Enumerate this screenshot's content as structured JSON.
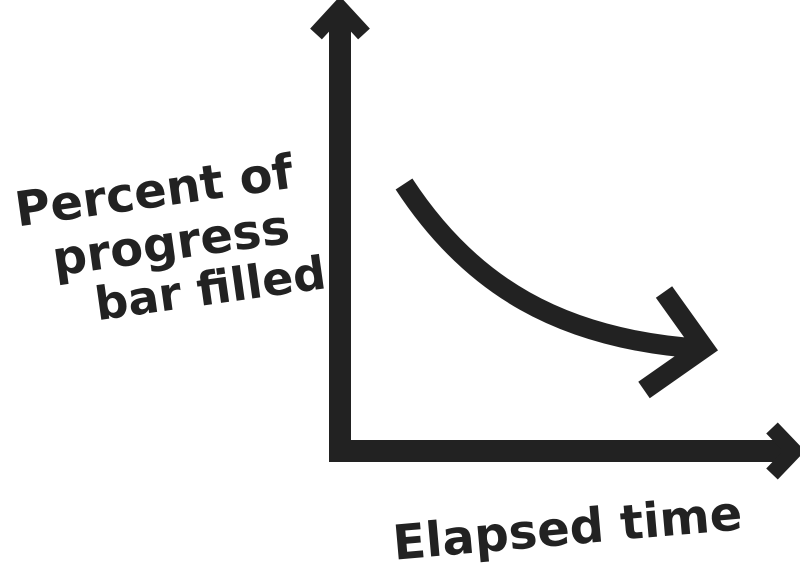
{
  "diagram": {
    "y_label_lines": [
      "Percent of",
      "progress",
      "bar filled"
    ],
    "x_label": "Elapsed time",
    "ink_color": "#222222",
    "background": "#ffffff",
    "curve_direction": "decreasing"
  }
}
